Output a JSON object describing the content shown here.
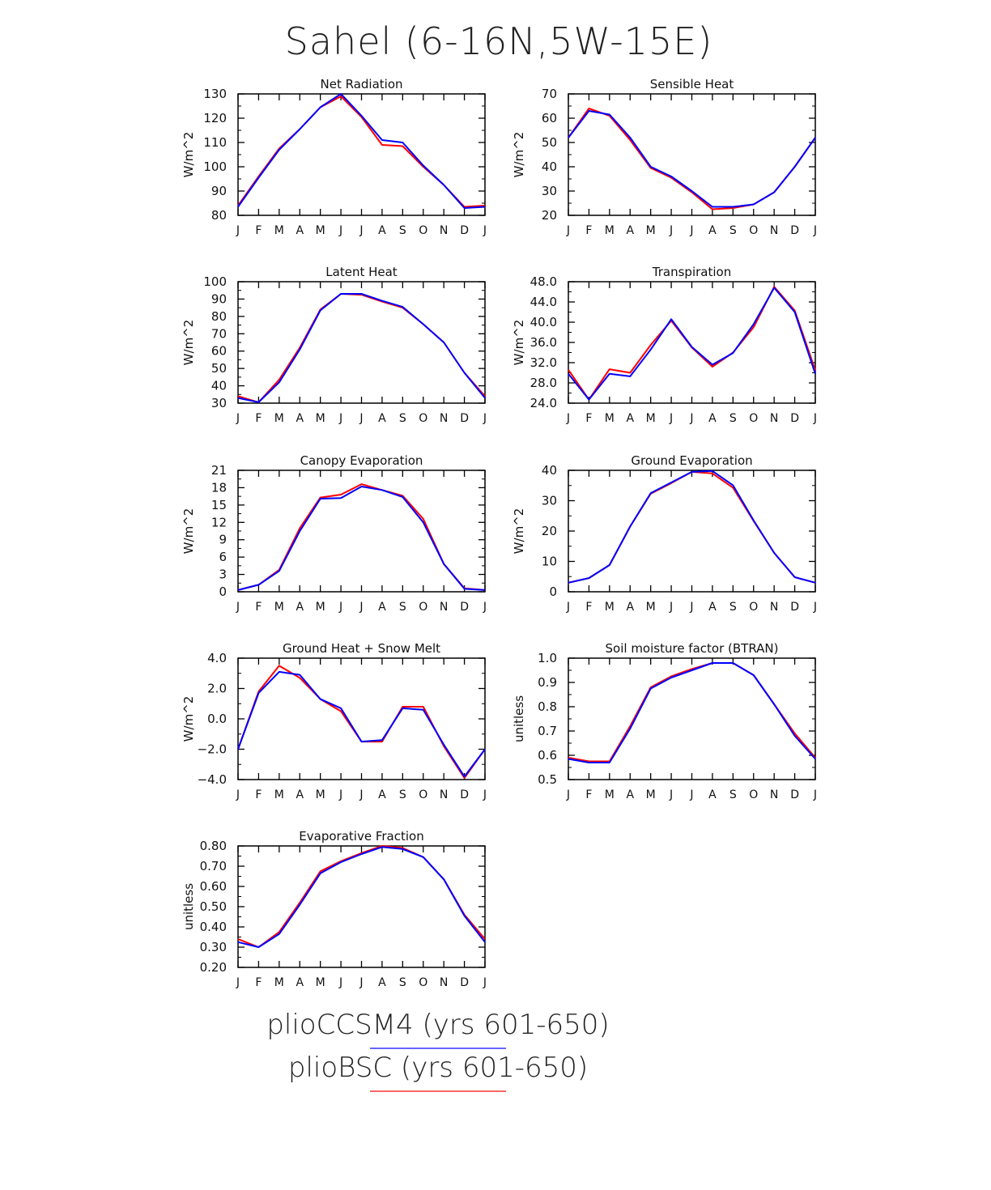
{
  "title": "Sahel (6-16N,5W-15E)",
  "colors": {
    "pliobsc": "#ff0000",
    "pliccsm4": "#0000ff"
  },
  "legend": [
    {
      "label": "plioCCSM4 (yrs 601-650)",
      "color": "#0000ff"
    },
    {
      "label": "plioBSC (yrs 601-650)",
      "color": "#ff0000"
    }
  ],
  "chart_data": [
    {
      "type": "line",
      "title": "Net Radiation",
      "ylabel": "W/m^2",
      "ylim": [
        80,
        130
      ],
      "yticks": [
        80,
        90,
        100,
        110,
        120,
        130
      ],
      "ydec": 0,
      "x": [
        "J",
        "F",
        "M",
        "A",
        "M",
        "J",
        "J",
        "A",
        "S",
        "O",
        "N",
        "D",
        "J"
      ],
      "series": [
        {
          "name": "plioBSC (yrs 601-650)",
          "color": "#ff0000",
          "values": [
            84,
            96,
            107.5,
            115.5,
            124.5,
            129,
            120.5,
            109,
            108.5,
            100,
            92.5,
            83.5,
            84
          ]
        },
        {
          "name": "plioCCSM4 (yrs 601-650)",
          "color": "#0000ff",
          "values": [
            83.5,
            95.5,
            107,
            115.5,
            124.5,
            130,
            121,
            111,
            110,
            100.5,
            92.5,
            83,
            83.5
          ]
        }
      ]
    },
    {
      "type": "line",
      "title": "Sensible Heat",
      "ylabel": "W/m^2",
      "ylim": [
        20,
        70
      ],
      "yticks": [
        20,
        30,
        40,
        50,
        60,
        70
      ],
      "ydec": 0,
      "x": [
        "J",
        "F",
        "M",
        "A",
        "M",
        "J",
        "J",
        "A",
        "S",
        "O",
        "N",
        "D",
        "J"
      ],
      "series": [
        {
          "name": "plioBSC (yrs 601-650)",
          "color": "#ff0000",
          "values": [
            52,
            64,
            61,
            51,
            39.5,
            35.5,
            29.5,
            22.5,
            23,
            24.5,
            29.5,
            40,
            52
          ]
        },
        {
          "name": "plioCCSM4 (yrs 601-650)",
          "color": "#0000ff",
          "values": [
            52,
            63,
            61.5,
            52,
            40,
            36,
            30,
            23.5,
            23.5,
            24.5,
            29.5,
            40,
            52
          ]
        }
      ]
    },
    {
      "type": "line",
      "title": "Latent Heat",
      "ylabel": "W/m^2",
      "ylim": [
        30,
        100
      ],
      "yticks": [
        30,
        40,
        50,
        60,
        70,
        80,
        90,
        100
      ],
      "ydec": 0,
      "x": [
        "J",
        "F",
        "M",
        "A",
        "M",
        "J",
        "J",
        "A",
        "S",
        "O",
        "N",
        "D",
        "J"
      ],
      "series": [
        {
          "name": "plioBSC (yrs 601-650)",
          "color": "#ff0000",
          "values": [
            34,
            30.5,
            43.5,
            62,
            84,
            93,
            92.5,
            88.5,
            85,
            75.5,
            65,
            47.5,
            34
          ]
        },
        {
          "name": "plioCCSM4 (yrs 601-650)",
          "color": "#0000ff",
          "values": [
            33,
            30.5,
            42,
            61,
            83.5,
            93,
            93,
            89,
            85.5,
            75.5,
            65,
            47.5,
            33
          ]
        }
      ]
    },
    {
      "type": "line",
      "title": "Transpiration",
      "ylabel": "W/m^2",
      "ylim": [
        24,
        48
      ],
      "yticks": [
        24,
        28,
        32,
        36,
        40,
        44,
        48
      ],
      "ydec": 1,
      "x": [
        "J",
        "F",
        "M",
        "A",
        "M",
        "J",
        "J",
        "A",
        "S",
        "O",
        "N",
        "D",
        "J"
      ],
      "series": [
        {
          "name": "plioBSC (yrs 601-650)",
          "color": "#ff0000",
          "values": [
            30.6,
            24.7,
            30.7,
            30,
            35.5,
            40.3,
            35,
            31.2,
            34,
            39,
            47,
            42.3,
            30.5
          ]
        },
        {
          "name": "plioCCSM4 (yrs 601-650)",
          "color": "#0000ff",
          "values": [
            29.8,
            24.7,
            29.8,
            29.3,
            34.6,
            40.6,
            35.1,
            31.6,
            33.9,
            39.6,
            46.8,
            42,
            29.8
          ]
        }
      ]
    },
    {
      "type": "line",
      "title": "Canopy Evaporation",
      "ylabel": "W/m^2",
      "ylim": [
        0,
        21
      ],
      "yticks": [
        0,
        3,
        6,
        9,
        12,
        15,
        18,
        21
      ],
      "ydec": 0,
      "x": [
        "J",
        "F",
        "M",
        "A",
        "M",
        "J",
        "J",
        "A",
        "S",
        "O",
        "N",
        "D",
        "J"
      ],
      "series": [
        {
          "name": "plioBSC (yrs 601-650)",
          "color": "#ff0000",
          "values": [
            0.3,
            1.2,
            3.8,
            11,
            16.3,
            16.8,
            18.6,
            17.6,
            16.6,
            12.6,
            4.8,
            0.6,
            0.3
          ]
        },
        {
          "name": "plioCCSM4 (yrs 601-650)",
          "color": "#0000ff",
          "values": [
            0.3,
            1.2,
            3.6,
            10.5,
            16.1,
            16.2,
            18.2,
            17.6,
            16.4,
            12,
            4.8,
            0.5,
            0.3
          ]
        }
      ]
    },
    {
      "type": "line",
      "title": "Ground Evaporation",
      "ylabel": "W/m^2",
      "ylim": [
        0,
        40
      ],
      "yticks": [
        0,
        10,
        20,
        30,
        40
      ],
      "ydec": 0,
      "x": [
        "J",
        "F",
        "M",
        "A",
        "M",
        "J",
        "J",
        "A",
        "S",
        "O",
        "N",
        "D",
        "J"
      ],
      "series": [
        {
          "name": "plioBSC (yrs 601-650)",
          "color": "#ff0000",
          "values": [
            3,
            4.5,
            8.8,
            21.5,
            32.3,
            35.8,
            39.5,
            39,
            34.3,
            23.3,
            12.8,
            4.8,
            3
          ]
        },
        {
          "name": "plioCCSM4 (yrs 601-650)",
          "color": "#0000ff",
          "values": [
            3,
            4.5,
            8.8,
            21.5,
            32.5,
            36,
            39.5,
            39.8,
            35.1,
            23.5,
            12.8,
            4.8,
            3
          ]
        }
      ]
    },
    {
      "type": "line",
      "title": "Ground Heat + Snow Melt",
      "ylabel": "W/m^2",
      "ylim": [
        -4,
        4
      ],
      "yticks": [
        -4,
        -2,
        0,
        2,
        4
      ],
      "ydec": 1,
      "x": [
        "J",
        "F",
        "M",
        "A",
        "M",
        "J",
        "J",
        "A",
        "S",
        "O",
        "N",
        "D",
        "J"
      ],
      "series": [
        {
          "name": "plioBSC (yrs 601-650)",
          "color": "#ff0000",
          "values": [
            -2,
            1.8,
            3.5,
            2.7,
            1.3,
            0.5,
            -1.5,
            -1.5,
            0.8,
            0.8,
            -1.8,
            -3.9,
            -2
          ]
        },
        {
          "name": "plioCCSM4 (yrs 601-650)",
          "color": "#0000ff",
          "values": [
            -2,
            1.7,
            3.1,
            2.9,
            1.3,
            0.7,
            -1.5,
            -1.4,
            0.7,
            0.6,
            -1.7,
            -3.8,
            -2
          ]
        }
      ]
    },
    {
      "type": "line",
      "title": "Soil moisture factor (BTRAN)",
      "ylabel": "unitless",
      "ylim": [
        0.5,
        1.0
      ],
      "yticks": [
        0.5,
        0.6,
        0.7,
        0.8,
        0.9,
        1.0
      ],
      "ydec": 1,
      "x": [
        "J",
        "F",
        "M",
        "A",
        "M",
        "J",
        "J",
        "A",
        "S",
        "O",
        "N",
        "D",
        "J"
      ],
      "series": [
        {
          "name": "plioBSC (yrs 601-650)",
          "color": "#ff0000",
          "values": [
            0.59,
            0.575,
            0.575,
            0.72,
            0.88,
            0.925,
            0.955,
            0.98,
            0.98,
            0.93,
            0.81,
            0.69,
            0.59
          ]
        },
        {
          "name": "plioCCSM4 (yrs 601-650)",
          "color": "#0000ff",
          "values": [
            0.585,
            0.57,
            0.57,
            0.71,
            0.875,
            0.92,
            0.95,
            0.98,
            0.98,
            0.93,
            0.81,
            0.68,
            0.585
          ]
        }
      ]
    },
    {
      "type": "line",
      "title": "Evaporative Fraction",
      "ylabel": "unitless",
      "ylim": [
        0.2,
        0.8
      ],
      "yticks": [
        0.2,
        0.3,
        0.4,
        0.5,
        0.6,
        0.7,
        0.8
      ],
      "ydec": 2,
      "x": [
        "J",
        "F",
        "M",
        "A",
        "M",
        "J",
        "J",
        "A",
        "S",
        "O",
        "N",
        "D",
        "J"
      ],
      "series": [
        {
          "name": "plioBSC (yrs 601-650)",
          "color": "#ff0000",
          "values": [
            0.34,
            0.3,
            0.375,
            0.52,
            0.675,
            0.725,
            0.765,
            0.8,
            0.79,
            0.745,
            0.635,
            0.46,
            0.34
          ]
        },
        {
          "name": "plioCCSM4 (yrs 601-650)",
          "color": "#0000ff",
          "values": [
            0.325,
            0.3,
            0.365,
            0.51,
            0.665,
            0.72,
            0.76,
            0.795,
            0.785,
            0.745,
            0.635,
            0.455,
            0.325
          ]
        }
      ]
    }
  ]
}
